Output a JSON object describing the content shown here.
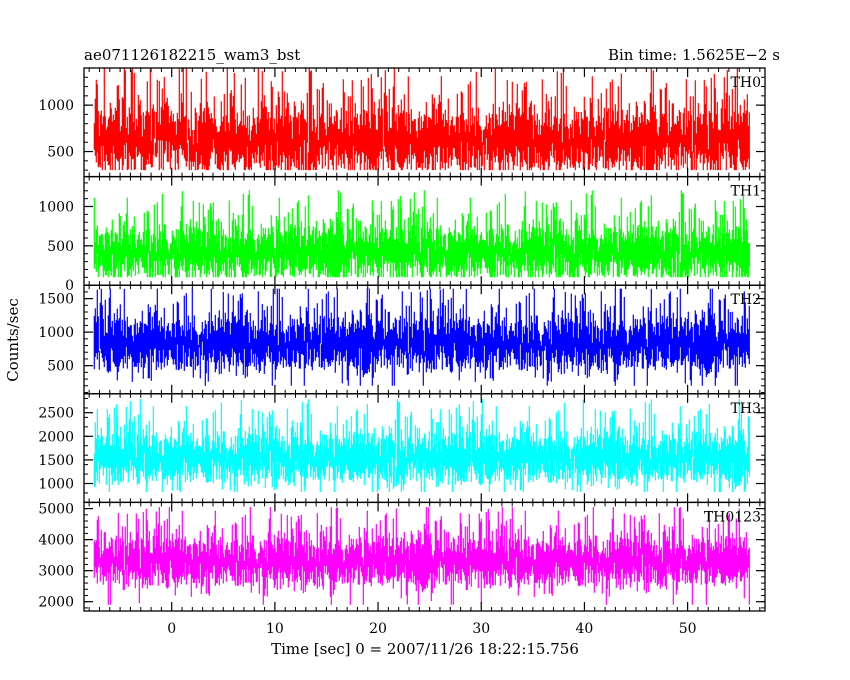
{
  "header": {
    "title": "ae071126182215_wam3_bst",
    "bin_time": "Bin time: 1.5625E−2 s"
  },
  "chart_data": {
    "type": "line",
    "title": "ae071126182215_wam3_bst",
    "subtitle": "Bin time: 1.5625E−2 s",
    "xlabel": "Time [sec] 0 = 2007/11/26 18:22:15.756",
    "ylabel": "Counts/sec",
    "xlim": [
      -8.5,
      57.5
    ],
    "x_ticks": [
      0,
      10,
      20,
      30,
      40,
      50
    ],
    "x_data_range": [
      -7.5,
      56
    ],
    "grid": false,
    "panels": [
      {
        "name": "TH0",
        "color": "#ff0000",
        "ylim": [
          230,
          1400
        ],
        "y_ticks": [
          500,
          1000
        ],
        "base": 620,
        "spread": 330,
        "min": 300,
        "max": 1400
      },
      {
        "name": "TH1",
        "color": "#00ff00",
        "ylim": [
          0,
          1380
        ],
        "y_ticks": [
          0,
          500,
          1000
        ],
        "base": 420,
        "spread": 330,
        "min": 100,
        "max": 1380
      },
      {
        "name": "TH2",
        "color": "#0000ff",
        "ylim": [
          80,
          1700
        ],
        "y_ticks": [
          500,
          1000,
          1500
        ],
        "base": 830,
        "spread": 390,
        "min": 200,
        "max": 1650
      },
      {
        "name": "TH3",
        "color": "#00ffff",
        "ylim": [
          600,
          2900
        ],
        "y_ticks": [
          1000,
          1500,
          2000,
          2500
        ],
        "base": 1550,
        "spread": 520,
        "min": 820,
        "max": 2870
      },
      {
        "name": "TH0123",
        "color": "#ff00ff",
        "ylim": [
          1700,
          5200
        ],
        "y_ticks": [
          2000,
          3000,
          4000,
          5000
        ],
        "base": 3300,
        "spread": 780,
        "min": 1900,
        "max": 5050
      }
    ]
  }
}
